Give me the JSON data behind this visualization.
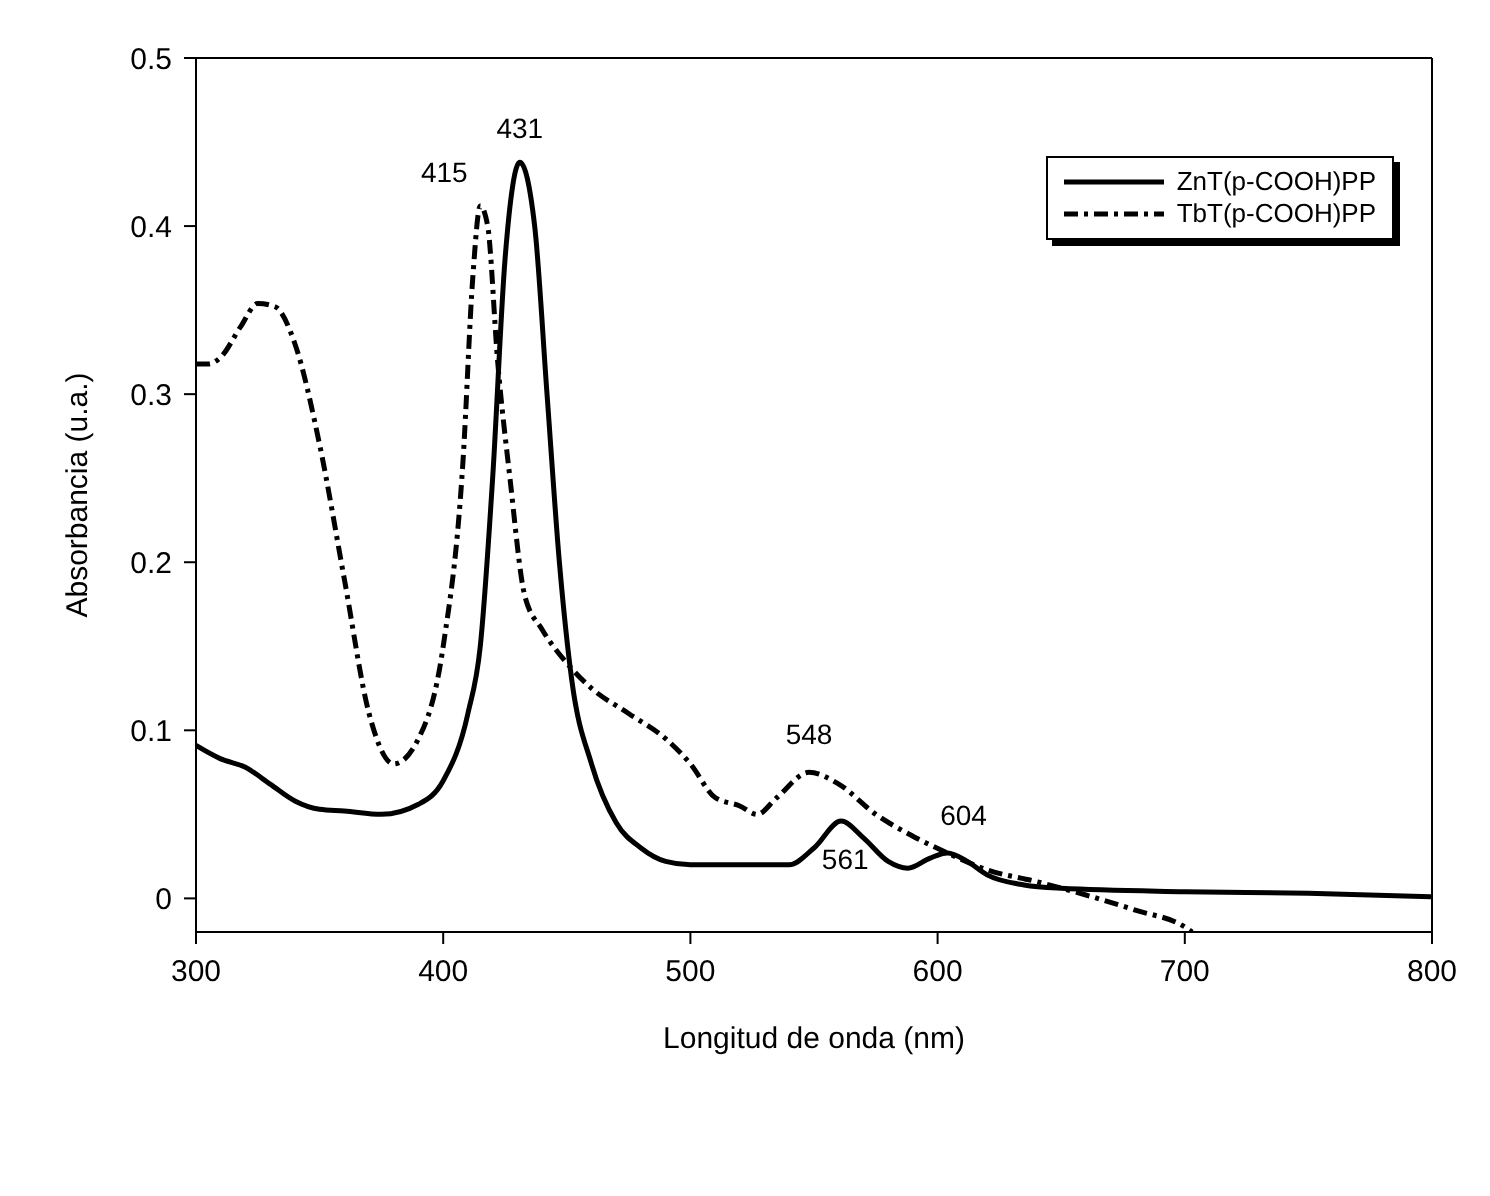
{
  "chart_data": {
    "type": "line",
    "xlabel": "Longitud de onda (nm)",
    "ylabel": "Absorbancia (u.a.)",
    "xlim": [
      300,
      800
    ],
    "xticks": [
      300,
      400,
      500,
      600,
      700,
      800
    ],
    "ylim": [
      -0.02,
      0.5
    ],
    "yticks": [
      0,
      0.1,
      0.2,
      0.3,
      0.4,
      0.5
    ],
    "grid": false,
    "legend": "top right",
    "marker": "none",
    "series": [
      {
        "name": "ZnT(p-COOH)PP",
        "color": "#000000",
        "line_style": "solid",
        "x": [
          300,
          310,
          320,
          330,
          340,
          350,
          360,
          375,
          390,
          400,
          410,
          415,
          420,
          425,
          431,
          437,
          442,
          447,
          452,
          460,
          470,
          480,
          490,
          500,
          540,
          550,
          561,
          570,
          580,
          588,
          597,
          604,
          612,
          620,
          635,
          650,
          700,
          750,
          800
        ],
        "values": [
          0.091,
          0.083,
          0.078,
          0.068,
          0.058,
          0.053,
          0.052,
          0.05,
          0.056,
          0.07,
          0.11,
          0.15,
          0.25,
          0.38,
          0.438,
          0.4,
          0.3,
          0.2,
          0.13,
          0.08,
          0.045,
          0.03,
          0.022,
          0.02,
          0.02,
          0.03,
          0.046,
          0.036,
          0.022,
          0.018,
          0.024,
          0.027,
          0.022,
          0.014,
          0.008,
          0.006,
          0.004,
          0.003,
          0.001
        ]
      },
      {
        "name": "TbT(p-COOH)PP",
        "color": "#000000",
        "line_style": "dashed",
        "x": [
          300,
          305,
          310,
          318,
          325,
          332,
          340,
          350,
          360,
          370,
          380,
          390,
          400,
          408,
          412,
          415,
          418,
          422,
          427,
          433,
          440,
          450,
          460,
          475,
          490,
          500,
          510,
          520,
          527,
          535,
          548,
          560,
          575,
          590,
          604,
          620,
          640,
          660,
          680,
          700,
          703
        ],
        "values": [
          0.318,
          0.318,
          0.322,
          0.34,
          0.354,
          0.352,
          0.33,
          0.27,
          0.19,
          0.11,
          0.08,
          0.095,
          0.15,
          0.26,
          0.37,
          0.412,
          0.4,
          0.32,
          0.25,
          0.18,
          0.16,
          0.14,
          0.125,
          0.11,
          0.095,
          0.08,
          0.06,
          0.055,
          0.05,
          0.06,
          0.075,
          0.068,
          0.05,
          0.037,
          0.027,
          0.017,
          0.01,
          0.002,
          -0.007,
          -0.017,
          -0.02
        ]
      }
    ],
    "annotations": [
      {
        "text": "431",
        "x": 431,
        "y": 0.438
      },
      {
        "text": "415",
        "x": 415,
        "y": 0.412
      },
      {
        "text": "548",
        "x": 548,
        "y": 0.075
      },
      {
        "text": "561",
        "x": 561,
        "y": 0.046
      },
      {
        "text": "604",
        "x": 604,
        "y": 0.027
      }
    ]
  }
}
